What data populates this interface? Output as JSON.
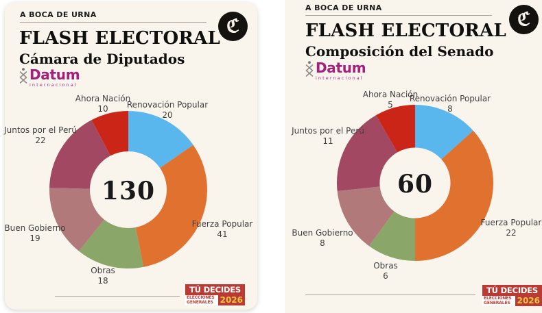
{
  "theme": {
    "page_bg": "#ffffff",
    "panel_bg": "#f9f4ec",
    "text_dark": "#1c1c1a",
    "label_gray": "#3f3f3f",
    "rule_gray": "#a9a39c",
    "logo_black": "#14120f",
    "datum_magenta": "#a5207d",
    "badge_red": "#bb3a33",
    "badge_yellow": "#e9c63e"
  },
  "brand": {
    "comercio_glyph": "ℭ",
    "datum_name": "Datum",
    "datum_sub": "internacional"
  },
  "badge": {
    "line1": "TÚ DECIDES",
    "line2a": "ELECCIONES",
    "line2b": "GENERALES",
    "year": "2026"
  },
  "panels": [
    {
      "kicker": "A BOCA DE URNA",
      "title": "FLASH ELECTORAL",
      "subtitle": "Cámara de Diputados"
    },
    {
      "kicker": "A BOCA DE URNA",
      "title": "FLASH ELECTORAL",
      "subtitle": "Composición del Senado"
    }
  ],
  "chart_data": [
    {
      "type": "pie",
      "variant": "donut",
      "title": "Cámara de Diputados",
      "categories": [
        "Renovación Popular",
        "Fuerza Popular",
        "Obras",
        "Buen Gobierno",
        "Juntos por el Perú",
        "Ahora Nación"
      ],
      "values": [
        20,
        41,
        18,
        19,
        22,
        10
      ],
      "colors": [
        "#5ab7ee",
        "#e0712e",
        "#8aa669",
        "#b1797a",
        "#a34862",
        "#cb2517"
      ],
      "total": 130,
      "center_label": "130",
      "start_angle_deg": 0,
      "direction": "clockwise",
      "legend": "none",
      "labels": "category name and seat count placed around ring"
    },
    {
      "type": "pie",
      "variant": "donut",
      "title": "Composición del Senado",
      "categories": [
        "Renovación Popular",
        "Fuerza Popular",
        "Obras",
        "Buen Gobierno",
        "Juntos por el Perú",
        "Ahora Nación"
      ],
      "values": [
        8,
        22,
        6,
        8,
        11,
        5
      ],
      "colors": [
        "#5ab7ee",
        "#e0712e",
        "#8aa669",
        "#b1797a",
        "#a34862",
        "#cb2517"
      ],
      "total": 60,
      "center_label": "60",
      "start_angle_deg": 0,
      "direction": "clockwise",
      "legend": "none",
      "labels": "category name and seat count placed around ring"
    }
  ]
}
